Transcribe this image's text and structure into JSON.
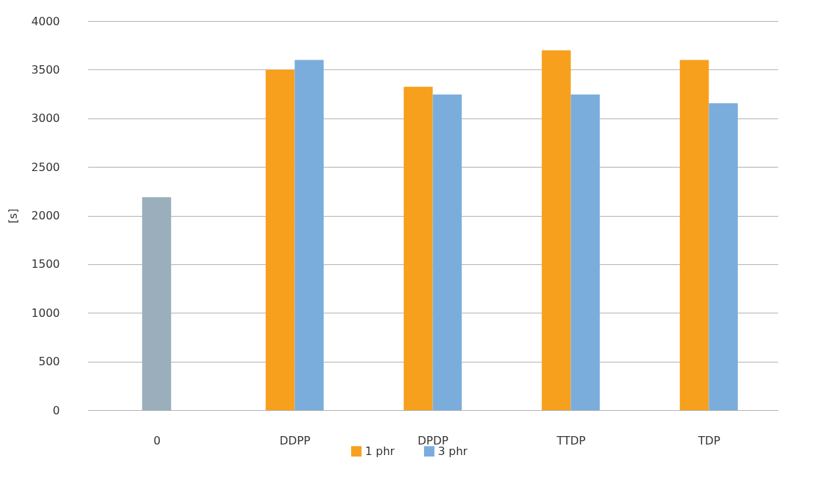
{
  "chart_data": {
    "type": "bar",
    "ylabel": "[s]",
    "categories": [
      "0",
      "DDPP",
      "DPDP",
      "TTDP",
      "TDP"
    ],
    "series": [
      {
        "name": "1 phr",
        "color": "#f7a01e",
        "values": [
          null,
          3500,
          3325,
          3700,
          3600
        ]
      },
      {
        "name": "3 phr",
        "color": "#7aaddc",
        "values": [
          null,
          3600,
          3245,
          3245,
          3155
        ]
      },
      {
        "color": "#9aafbb",
        "values": [
          2190,
          null,
          null,
          null,
          null
        ]
      }
    ],
    "ylim": [
      0,
      4000
    ],
    "yticks": [
      0,
      500,
      1000,
      1500,
      2000,
      2500,
      3000,
      3500,
      4000
    ],
    "grid": "y",
    "legend": "bottom"
  }
}
